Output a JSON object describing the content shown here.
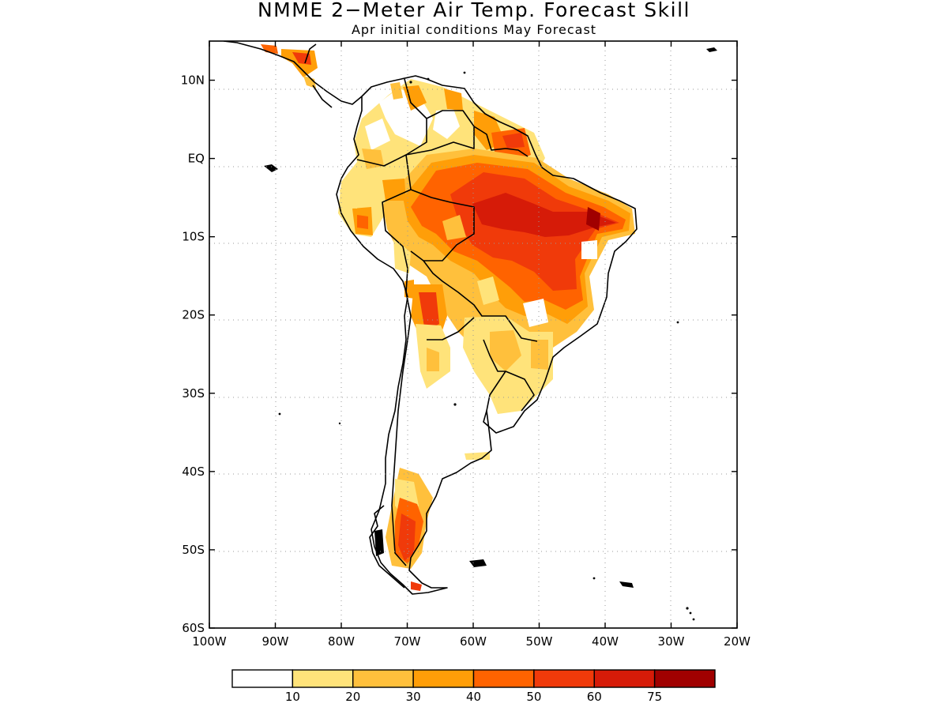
{
  "title": "NMME 2−Meter Air Temp. Forecast Skill",
  "subtitle": "Apr initial conditions   May Forecast",
  "map": {
    "region": "South America",
    "lon_range": [
      -100,
      -20
    ],
    "lat_range": [
      -60,
      15
    ],
    "lon_ticks": [
      {
        "value": -100,
        "label": "100W"
      },
      {
        "value": -90,
        "label": "90W"
      },
      {
        "value": -80,
        "label": "80W"
      },
      {
        "value": -70,
        "label": "70W"
      },
      {
        "value": -60,
        "label": "60W"
      },
      {
        "value": -50,
        "label": "50W"
      },
      {
        "value": -40,
        "label": "40W"
      },
      {
        "value": -30,
        "label": "30W"
      },
      {
        "value": -20,
        "label": "20W"
      }
    ],
    "lat_ticks": [
      {
        "value": 10,
        "label": "10N"
      },
      {
        "value": 0,
        "label": "EQ"
      },
      {
        "value": -10,
        "label": "10S"
      },
      {
        "value": -20,
        "label": "20S"
      },
      {
        "value": -30,
        "label": "30S"
      },
      {
        "value": -40,
        "label": "40S"
      },
      {
        "value": -50,
        "label": "50S"
      },
      {
        "value": -60,
        "label": "60S"
      }
    ],
    "grid": "dotted"
  },
  "colorbar": {
    "labels": [
      "10",
      "20",
      "30",
      "40",
      "50",
      "60",
      "75"
    ],
    "colors": [
      "#ffffff",
      "#ffe37a",
      "#ffc03c",
      "#ff9e08",
      "#ff6300",
      "#f03a0a",
      "#d61b08",
      "#a00000"
    ]
  }
}
